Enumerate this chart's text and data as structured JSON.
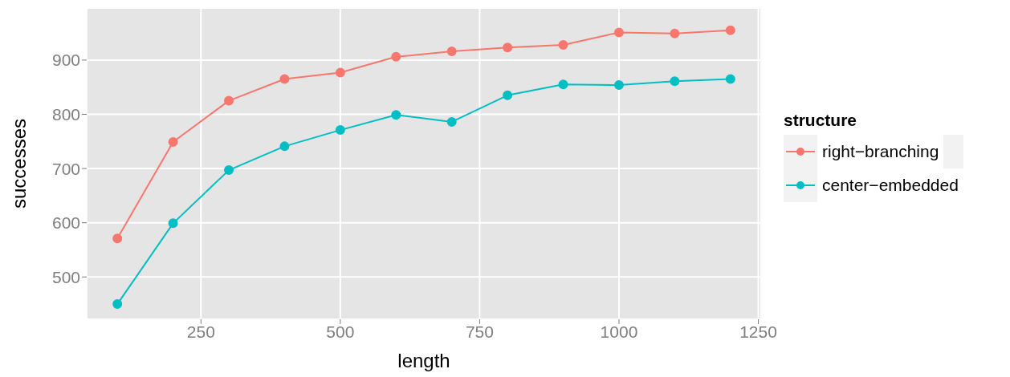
{
  "chart_data": {
    "type": "line",
    "xlabel": "length",
    "ylabel": "successes",
    "legend_title": "structure",
    "x": [
      100,
      200,
      300,
      400,
      500,
      600,
      700,
      800,
      900,
      1000,
      1100,
      1200
    ],
    "series": [
      {
        "name": "right−branching",
        "color": "#f8766d",
        "values": [
          571,
          749,
          825,
          865,
          877,
          906,
          916,
          923,
          928,
          951,
          949,
          955
        ]
      },
      {
        "name": "center−embedded",
        "color": "#00bfc4",
        "values": [
          450,
          599,
          697,
          741,
          771,
          799,
          786,
          835,
          855,
          854,
          861,
          865
        ]
      }
    ],
    "xlim": [
      45,
      1255
    ],
    "xticks": [
      250,
      500,
      750,
      1000,
      1250
    ],
    "ylim": [
      422,
      996
    ],
    "yticks": [
      500,
      600,
      700,
      800,
      900
    ],
    "grid": true,
    "legend": "right",
    "marker": "circle",
    "line_style": "solid"
  }
}
